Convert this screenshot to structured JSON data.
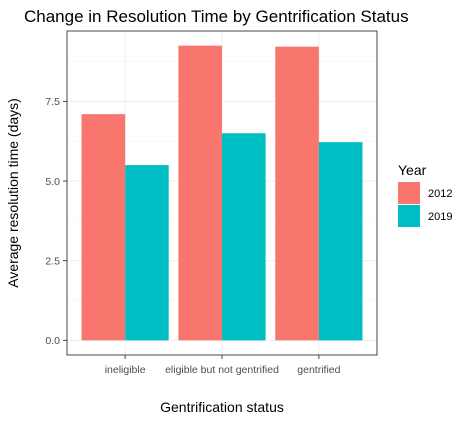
{
  "chart_data": {
    "type": "bar",
    "title": "Change in Resolution Time by Gentrification Status",
    "xlabel": "Gentrification status",
    "ylabel": "Average resolution time (days)",
    "categories": [
      "ineligible",
      "eligible but not gentrified",
      "gentrified"
    ],
    "series": [
      {
        "name": "2012",
        "color": "#F8766D",
        "values": [
          7.1,
          9.25,
          9.22
        ]
      },
      {
        "name": "2019",
        "color": "#00BFC4",
        "values": [
          5.5,
          6.5,
          6.22
        ]
      }
    ],
    "yticks": [
      0,
      2.5,
      5,
      7.5
    ],
    "ytick_labels": [
      "0.0",
      "2.5",
      "5.0",
      "7.5"
    ],
    "ylim": [
      -0.46,
      9.71
    ],
    "grid": true,
    "legend": {
      "title": "Year",
      "position": "right"
    }
  }
}
